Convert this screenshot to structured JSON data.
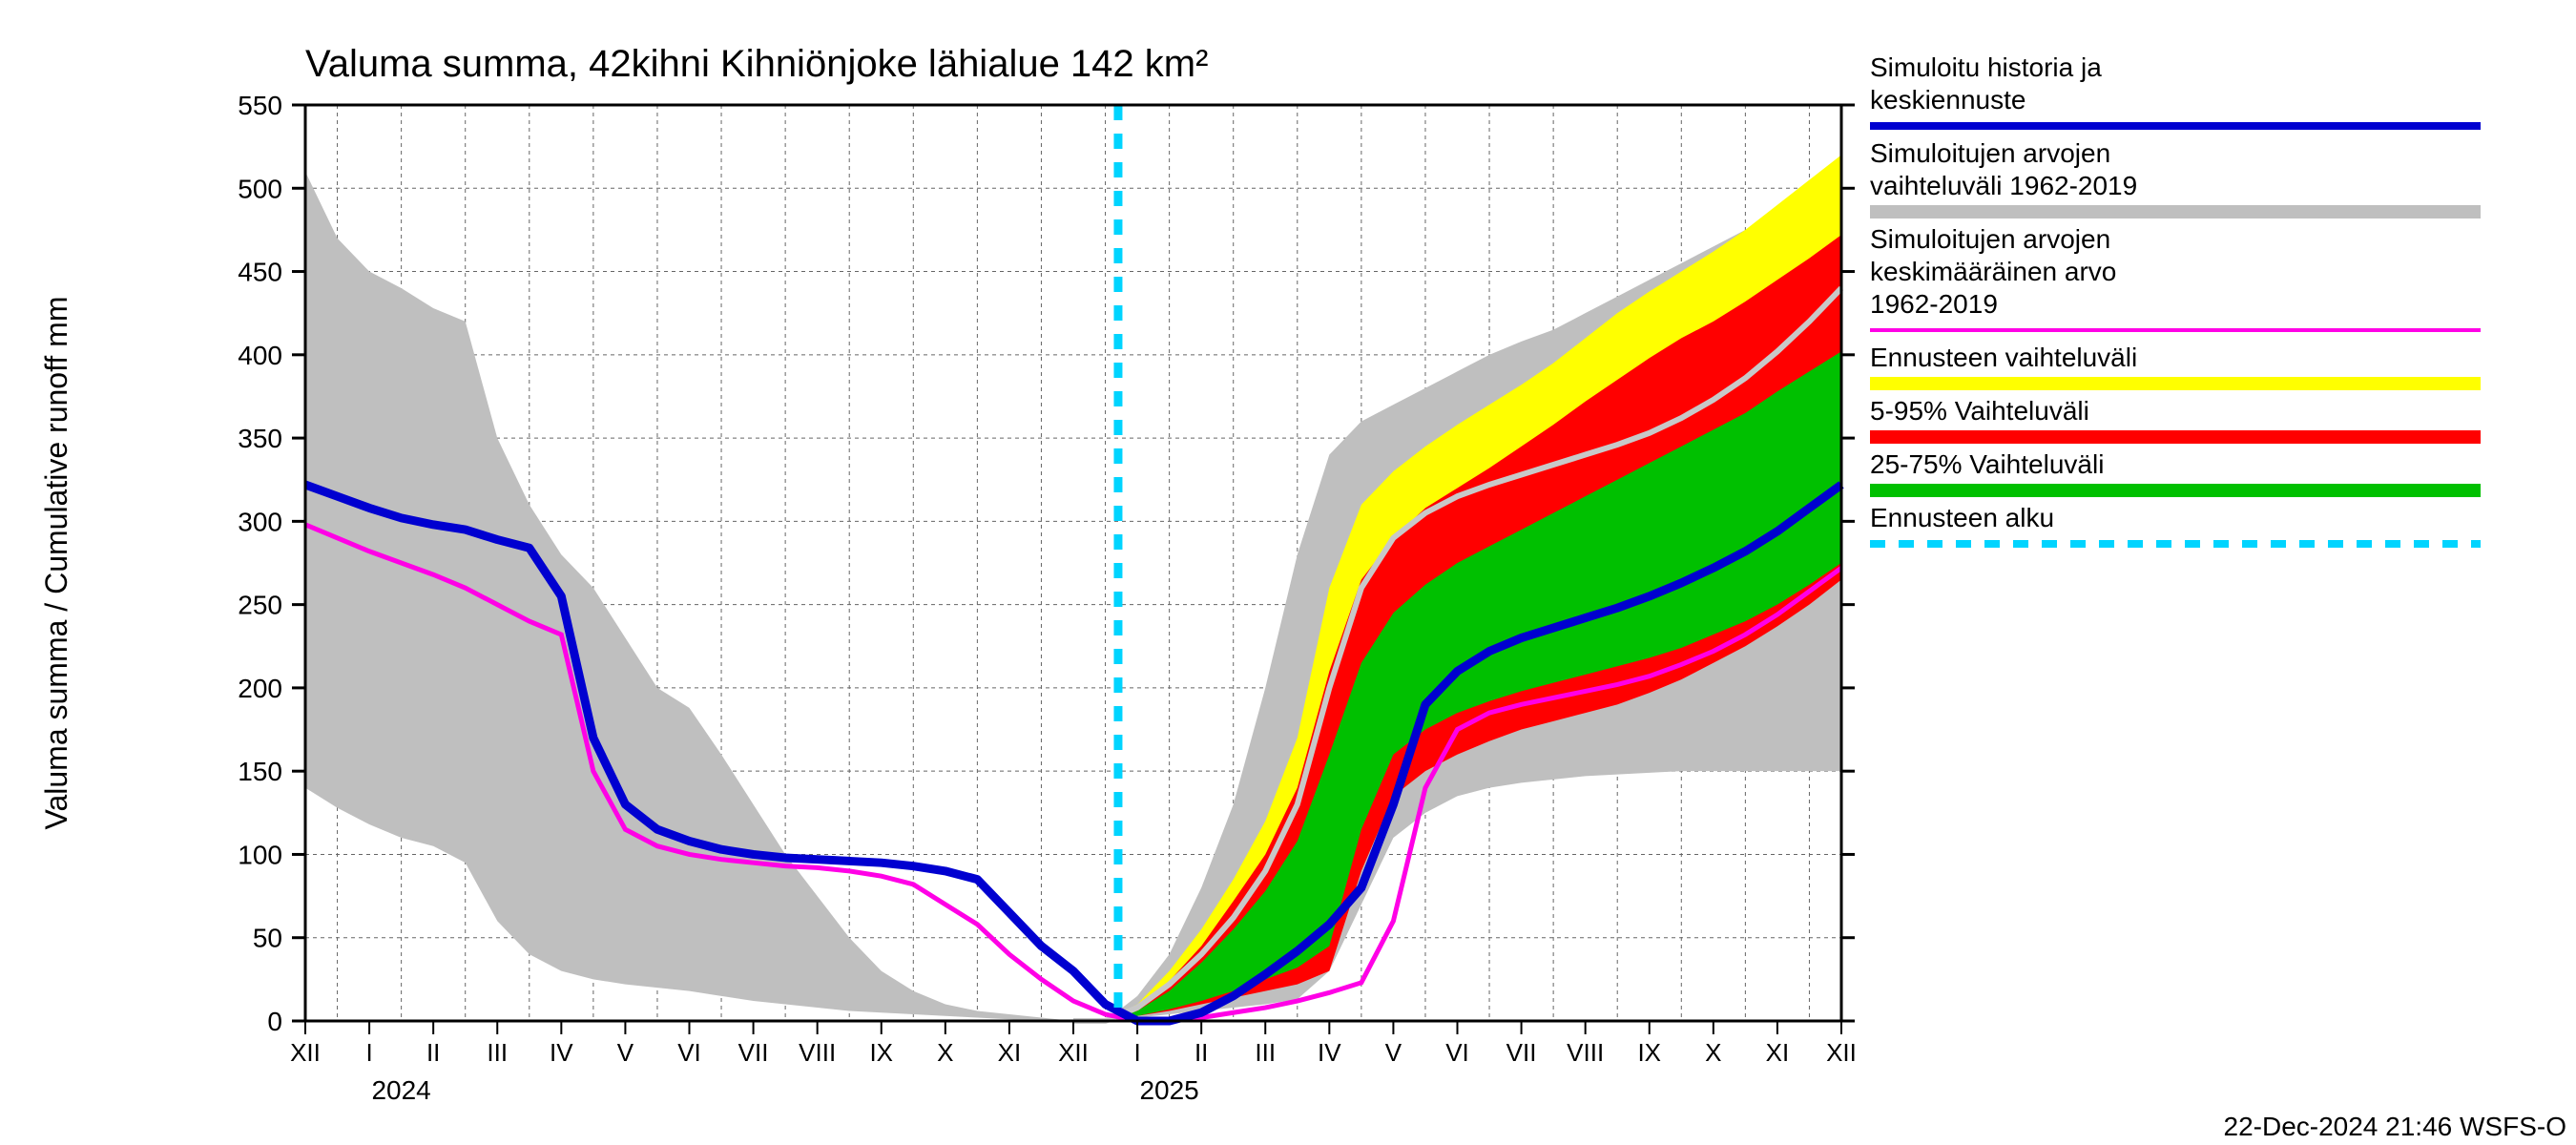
{
  "chart": {
    "type": "line-area-forecast",
    "title": "Valuma summa, 42kihni Kihniönjoke lähialue 142 km²",
    "ylabel": "Valuma summa / Cumulative runoff    mm",
    "ylim": [
      0,
      550
    ],
    "ytick_step": 50,
    "month_labels": [
      "XII",
      "I",
      "II",
      "III",
      "IV",
      "V",
      "VI",
      "VII",
      "VIII",
      "IX",
      "X",
      "XI",
      "XII",
      "I",
      "II",
      "III",
      "IV",
      "V",
      "VI",
      "VII",
      "VIII",
      "IX",
      "X",
      "XI",
      "XII"
    ],
    "year_labels": [
      {
        "text": "2024",
        "at_month_index": 1.5
      },
      {
        "text": "2025",
        "at_month_index": 13.5
      }
    ],
    "forecast_start_month_index": 12.7,
    "background_color": "#ffffff",
    "grid_color": "#666666",
    "grid_dash": "4,4",
    "axis_color": "#000000",
    "footer": "22-Dec-2024 21:46 WSFS-O",
    "colors": {
      "hist_band": "#bfbfbf",
      "yellow": "#ffff00",
      "red": "#ff0000",
      "green": "#00c000",
      "blue": "#0000d0",
      "magenta": "#ff00e6",
      "cyan": "#00d4ff",
      "hist_mean_gray": "#c8c8c8"
    },
    "legend": [
      {
        "label_lines": [
          "Simuloitu historia ja",
          "keskiennuste"
        ],
        "type": "line",
        "color": "#0000d0",
        "width": 8
      },
      {
        "label_lines": [
          "Simuloitujen arvojen",
          "vaihteluväli 1962-2019"
        ],
        "type": "line",
        "color": "#bfbfbf",
        "width": 14
      },
      {
        "label_lines": [
          "Simuloitujen arvojen",
          "keskimääräinen arvo",
          "  1962-2019"
        ],
        "type": "line",
        "color": "#ff00e6",
        "width": 4
      },
      {
        "label_lines": [
          "Ennusteen vaihteluväli"
        ],
        "type": "line",
        "color": "#ffff00",
        "width": 14
      },
      {
        "label_lines": [
          "5-95% Vaihteluväli"
        ],
        "type": "line",
        "color": "#ff0000",
        "width": 14
      },
      {
        "label_lines": [
          "25-75% Vaihteluväli"
        ],
        "type": "line",
        "color": "#00c000",
        "width": 14
      },
      {
        "label_lines": [
          "Ennusteen alku"
        ],
        "type": "dash",
        "color": "#00d4ff",
        "width": 8
      }
    ],
    "series": {
      "hist_band_upper": [
        510,
        470,
        450,
        440,
        428,
        420,
        350,
        310,
        280,
        260,
        230,
        200,
        188,
        160,
        130,
        100,
        75,
        50,
        30,
        18,
        10,
        6,
        4,
        2,
        0,
        0,
        15,
        40,
        80,
        130,
        200,
        280,
        340,
        360,
        370,
        380,
        390,
        400,
        408,
        415,
        425,
        435,
        445,
        455,
        465,
        475,
        485,
        495,
        505
      ],
      "hist_band_lower": [
        140,
        128,
        118,
        110,
        105,
        95,
        60,
        40,
        30,
        25,
        22,
        20,
        18,
        15,
        12,
        10,
        8,
        6,
        5,
        4,
        3,
        2,
        1,
        0,
        0,
        0,
        2,
        4,
        6,
        8,
        10,
        13,
        30,
        70,
        110,
        125,
        135,
        140,
        143,
        145,
        147,
        148,
        149,
        150,
        150,
        150,
        150,
        150,
        150
      ],
      "yellow_upper": [
        0,
        0,
        10,
        30,
        55,
        85,
        120,
        170,
        260,
        310,
        330,
        345,
        358,
        370,
        382,
        395,
        410,
        425,
        438,
        450,
        462,
        475,
        490,
        505,
        520
      ],
      "yellow_lower": [
        0,
        0,
        4,
        8,
        12,
        16,
        20,
        25,
        35,
        100,
        150,
        165,
        175,
        183,
        190,
        195,
        200,
        205,
        212,
        220,
        230,
        240,
        252,
        265,
        280
      ],
      "red_upper": [
        0,
        0,
        8,
        24,
        45,
        72,
        100,
        140,
        210,
        265,
        290,
        308,
        320,
        332,
        345,
        358,
        372,
        385,
        398,
        410,
        420,
        432,
        445,
        458,
        472
      ],
      "red_lower": [
        0,
        0,
        3,
        6,
        10,
        14,
        18,
        22,
        30,
        90,
        135,
        150,
        160,
        168,
        175,
        180,
        185,
        190,
        197,
        205,
        215,
        225,
        237,
        250,
        265
      ],
      "green_upper": [
        0,
        0,
        6,
        18,
        35,
        55,
        78,
        108,
        160,
        215,
        245,
        262,
        275,
        285,
        295,
        305,
        315,
        325,
        335,
        345,
        355,
        365,
        378,
        390,
        402
      ],
      "green_lower": [
        0,
        0,
        3,
        7,
        12,
        18,
        25,
        32,
        45,
        115,
        160,
        175,
        185,
        192,
        198,
        203,
        208,
        213,
        218,
        224,
        232,
        240,
        250,
        262,
        275
      ],
      "blue_full": [
        322,
        315,
        308,
        302,
        298,
        295,
        289,
        284,
        255,
        170,
        130,
        115,
        108,
        103,
        100,
        98,
        97,
        96,
        95,
        93,
        90,
        85,
        65,
        45,
        30,
        10,
        0,
        0,
        5,
        15,
        28,
        42,
        58,
        80,
        130,
        190,
        210,
        222,
        230,
        236,
        242,
        248,
        255,
        263,
        272,
        282,
        294,
        308,
        322
      ],
      "magenta_full": [
        298,
        290,
        282,
        275,
        268,
        260,
        250,
        240,
        232,
        150,
        115,
        105,
        100,
        97,
        95,
        93,
        92,
        90,
        87,
        82,
        70,
        58,
        40,
        25,
        12,
        4,
        0,
        0,
        2,
        5,
        8,
        12,
        17,
        23,
        60,
        140,
        175,
        185,
        190,
        194,
        198,
        202,
        207,
        214,
        222,
        232,
        244,
        258,
        272
      ],
      "hist_mean_future": [
        0,
        0,
        8,
        22,
        40,
        62,
        90,
        130,
        200,
        260,
        290,
        305,
        315,
        322,
        328,
        334,
        340,
        346,
        353,
        362,
        373,
        386,
        402,
        420,
        440
      ]
    }
  }
}
